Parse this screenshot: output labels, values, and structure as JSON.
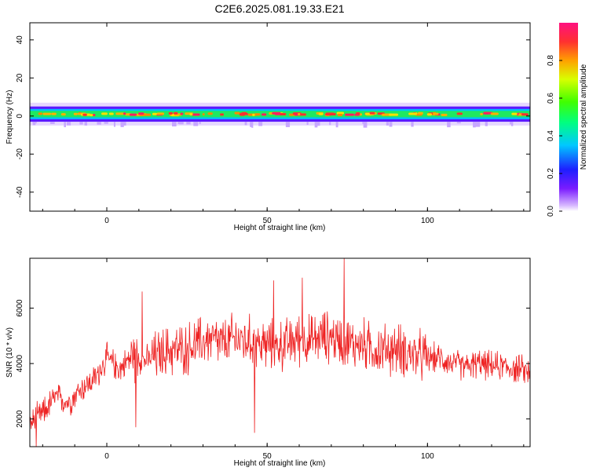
{
  "title": "C2E6.2025.081.19.33.E21",
  "chart_data": [
    {
      "type": "heatmap",
      "xlabel": "Height of straight line (km)",
      "ylabel": "Frequency (Hz)",
      "xlim": [
        -24,
        132
      ],
      "ylim": [
        -50,
        49
      ],
      "xticks": [
        0,
        50,
        100
      ],
      "yticks": [
        40,
        20,
        0,
        -20,
        -40
      ],
      "band_center_hz": 1,
      "band_halfwidth_hz": 4,
      "colorbar": {
        "label": "Normalized spectral amplitude",
        "range": [
          0,
          1
        ],
        "ticks": [
          "0.0",
          "0.2",
          "0.4",
          "0.6",
          "0.8"
        ]
      }
    },
    {
      "type": "line",
      "xlabel": "Height of straight line (km)",
      "ylabel": "SNR (10 * v/v)",
      "xlim": [
        -24,
        132
      ],
      "ylim": [
        1000,
        7800
      ],
      "xticks": [
        0,
        50,
        100
      ],
      "yticks": [
        2000,
        4000,
        6000
      ],
      "color": "#ee2222",
      "x": [
        -24,
        -20,
        -16,
        -12,
        -8,
        -4,
        0,
        4,
        8,
        12,
        16,
        20,
        24,
        28,
        32,
        36,
        40,
        44,
        48,
        52,
        56,
        60,
        64,
        68,
        72,
        76,
        80,
        84,
        88,
        92,
        96,
        100,
        104,
        108,
        112,
        116,
        120,
        124,
        128,
        132
      ],
      "y": [
        1800,
        2200,
        2800,
        2600,
        3100,
        3400,
        4200,
        3800,
        4300,
        4100,
        4300,
        4500,
        4500,
        4700,
        4900,
        4700,
        4900,
        4800,
        4700,
        4600,
        4700,
        4900,
        4800,
        5000,
        4900,
        4700,
        4700,
        4500,
        4500,
        4500,
        4300,
        4200,
        4200,
        4000,
        3900,
        4000,
        3900,
        3900,
        3800,
        3700
      ],
      "peaks": [
        {
          "x": 11,
          "y": 6600
        },
        {
          "x": 52,
          "y": 7000
        },
        {
          "x": 61,
          "y": 7100
        },
        {
          "x": 74,
          "y": 7800
        }
      ],
      "dips": [
        {
          "x": -22,
          "y": 1000
        },
        {
          "x": 9,
          "y": 1700
        },
        {
          "x": 46,
          "y": 1500
        }
      ]
    }
  ]
}
